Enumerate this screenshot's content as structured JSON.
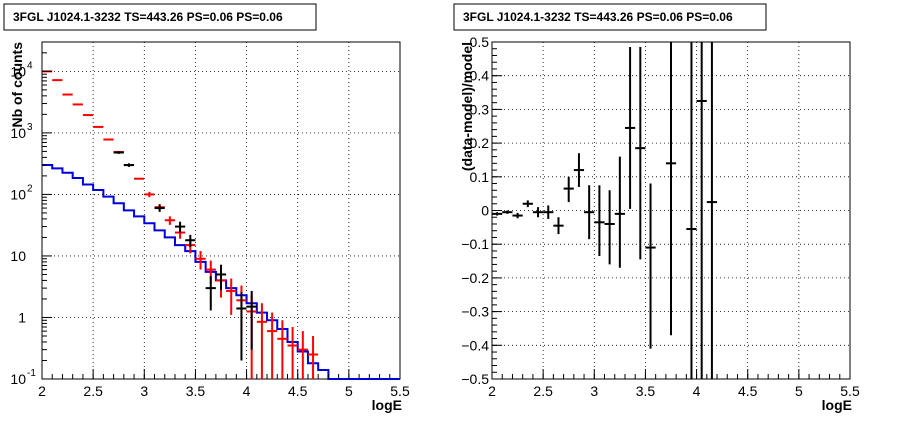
{
  "chart_data": [
    {
      "type": "step-histogram-with-errorbars",
      "title": "3FGL J1024.1-3232 TS=443.26 PS=0.06 PS=0.06",
      "xlabel": "logE",
      "ylabel": "Nb of counts",
      "xlim": [
        2,
        5.5
      ],
      "ylim": [
        0.1,
        30000
      ],
      "yscale": "log",
      "grid": true,
      "x_ticks": [
        2,
        2.5,
        3,
        3.5,
        4,
        4.5,
        5,
        5.5
      ],
      "x_tick_labels": [
        "2",
        "2.5",
        "3",
        "3.5",
        "4",
        "4.5",
        "5",
        "5.5"
      ],
      "y_ticks": [
        {
          "value": 0.1,
          "base": "10",
          "exp": "-1"
        },
        {
          "value": 1,
          "base": "1",
          "exp": ""
        },
        {
          "value": 10,
          "base": "10",
          "exp": ""
        },
        {
          "value": 100,
          "base": "10",
          "exp": "2"
        },
        {
          "value": 1000,
          "base": "10",
          "exp": "3"
        },
        {
          "value": 10000,
          "base": "10",
          "exp": "4"
        }
      ],
      "bin_width": 0.1,
      "series": [
        {
          "role": "model-total",
          "color": "#ff0000",
          "x": [
            2.05,
            2.15,
            2.25,
            2.35,
            2.45,
            2.55,
            2.65,
            2.75,
            2.85,
            2.95,
            3.05,
            3.15,
            3.25,
            3.35,
            3.45,
            3.55,
            3.65,
            3.75,
            3.85,
            3.95,
            4.05,
            4.15,
            4.25,
            4.35,
            4.45,
            4.55,
            4.65
          ],
          "y": [
            10000,
            7200,
            4200,
            2900,
            1950,
            1250,
            780,
            490,
            300,
            180,
            100,
            62,
            38,
            24,
            15,
            9,
            6,
            4,
            2.7,
            1.9,
            1.25,
            0.85,
            0.6,
            0.45,
            0.35,
            0.3,
            0.25
          ],
          "err_lo": [
            0,
            0,
            0,
            0,
            0,
            0,
            0,
            0,
            0,
            0,
            10,
            8,
            6,
            5,
            4,
            3,
            2.4,
            1.9,
            1.6,
            1.4,
            1.15,
            0.85,
            0.6,
            0.45,
            0.35,
            0.3,
            0.25
          ],
          "err_hi": [
            0,
            0,
            0,
            0,
            0,
            0,
            0,
            0,
            0,
            0,
            10,
            8,
            6,
            5,
            4,
            3,
            2.4,
            1.9,
            1.6,
            1.4,
            1.15,
            0.85,
            0.6,
            0.45,
            0.35,
            0.3,
            0.25
          ]
        },
        {
          "role": "model-source",
          "color": "#0000dd",
          "style": "step",
          "edges": [
            2.0,
            2.1,
            2.2,
            2.3,
            2.4,
            2.5,
            2.6,
            2.7,
            2.8,
            2.9,
            3.0,
            3.1,
            3.2,
            3.3,
            3.4,
            3.5,
            3.6,
            3.7,
            3.8,
            3.9,
            4.0,
            4.1,
            4.2,
            4.3,
            4.4,
            4.5,
            4.6,
            4.7,
            4.8,
            5.0,
            5.5
          ],
          "y": [
            300,
            265,
            225,
            185,
            145,
            118,
            92,
            72,
            55,
            44,
            34,
            26,
            20,
            15,
            12,
            8,
            5.5,
            4,
            3,
            2.3,
            1.7,
            1.2,
            0.9,
            0.65,
            0.4,
            0.28,
            0.18,
            0.14,
            0.1,
            0.1
          ]
        },
        {
          "role": "data",
          "color": "#000000",
          "x": [
            2.75,
            2.85,
            3.15,
            3.35,
            3.45,
            3.65,
            3.75,
            3.95,
            4.05
          ],
          "y": [
            480,
            300,
            60,
            30,
            18,
            3,
            5,
            1.4,
            1.5
          ],
          "err_lo": [
            25,
            20,
            8,
            6,
            4,
            1.7,
            2.2,
            1.2,
            1.2
          ],
          "err_hi": [
            25,
            20,
            8,
            6,
            4,
            1.7,
            2.2,
            1.2,
            1.2
          ]
        }
      ]
    },
    {
      "type": "scatter-with-errorbars",
      "title": "3FGL J1024.1-3232 TS=443.26 PS=0.06 PS=0.06",
      "xlabel": "logE",
      "ylabel": "(data-model)/model",
      "xlim": [
        2,
        5.5
      ],
      "ylim": [
        -0.5,
        0.5
      ],
      "grid": true,
      "x_ticks": [
        2,
        2.5,
        3,
        3.5,
        4,
        4.5,
        5,
        5.5
      ],
      "x_tick_labels": [
        "2",
        "2.5",
        "3",
        "3.5",
        "4",
        "4.5",
        "5",
        "5.5"
      ],
      "y_ticks": [
        -0.5,
        -0.4,
        -0.3,
        -0.2,
        -0.1,
        0,
        0.1,
        0.2,
        0.3,
        0.4,
        0.5
      ],
      "y_tick_labels": [
        "−0.5",
        "−0.4",
        "−0.3",
        "−0.2",
        "−0.1",
        "0",
        "0.1",
        "0.2",
        "0.3",
        "0.4",
        "0.5"
      ],
      "bin_width": 0.1,
      "series": [
        {
          "role": "residuals",
          "color": "#000000",
          "x": [
            2.05,
            2.15,
            2.25,
            2.35,
            2.45,
            2.55,
            2.65,
            2.75,
            2.85,
            2.95,
            3.05,
            3.15,
            3.25,
            3.35,
            3.45,
            3.55,
            3.75,
            3.95,
            4.05,
            4.15
          ],
          "y": [
            -0.01,
            -0.005,
            -0.015,
            0.02,
            -0.005,
            -0.005,
            -0.045,
            0.065,
            0.12,
            -0.005,
            -0.035,
            -0.04,
            -0.01,
            0.245,
            0.185,
            -0.11,
            0.14,
            -0.055,
            0.325,
            0.025
          ],
          "err_lo": [
            0.005,
            0.005,
            0.008,
            0.01,
            0.015,
            0.02,
            0.025,
            0.04,
            0.05,
            0.08,
            0.1,
            0.12,
            0.16,
            0.24,
            0.33,
            0.3,
            0.51,
            0.5,
            0.9,
            0.6
          ],
          "err_hi": [
            0.005,
            0.005,
            0.008,
            0.01,
            0.015,
            0.02,
            0.025,
            0.035,
            0.05,
            0.08,
            0.11,
            0.1,
            0.17,
            0.24,
            0.3,
            0.19,
            0.4,
            0.6,
            0.3,
            0.5
          ]
        }
      ]
    }
  ]
}
